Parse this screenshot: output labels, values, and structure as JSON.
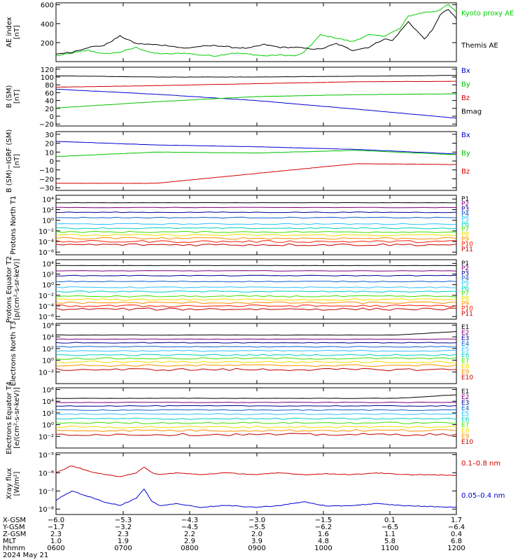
{
  "chart_data": [
    {
      "type": "line",
      "ylabel": "AE index [nT]",
      "yticks": [
        "600",
        "400",
        "200"
      ],
      "ylim": [
        0,
        620
      ],
      "series": [
        {
          "name": "Kyoto proxy AE",
          "color": "#00d000",
          "x": [
            0,
            0.04,
            0.08,
            0.12,
            0.16,
            0.2,
            0.24,
            0.28,
            0.32,
            0.36,
            0.4,
            0.44,
            0.48,
            0.52,
            0.56,
            0.6,
            0.62,
            0.66,
            0.7,
            0.74,
            0.78,
            0.82,
            0.86,
            0.88,
            0.92,
            0.95,
            0.98,
            1
          ],
          "y": [
            60,
            90,
            120,
            80,
            100,
            150,
            90,
            80,
            90,
            70,
            60,
            90,
            80,
            60,
            70,
            60,
            100,
            280,
            250,
            210,
            280,
            270,
            350,
            480,
            520,
            530,
            600,
            520
          ]
        },
        {
          "name": "Themis AE",
          "color": "#000000",
          "x": [
            0,
            0.04,
            0.08,
            0.12,
            0.16,
            0.2,
            0.24,
            0.28,
            0.32,
            0.36,
            0.4,
            0.44,
            0.48,
            0.52,
            0.56,
            0.6,
            0.62,
            0.66,
            0.7,
            0.74,
            0.78,
            0.82,
            0.84,
            0.86,
            0.88,
            0.92,
            0.94,
            0.96,
            0.98,
            1
          ],
          "y": [
            80,
            100,
            150,
            170,
            270,
            190,
            180,
            170,
            140,
            160,
            170,
            150,
            140,
            180,
            150,
            150,
            140,
            130,
            190,
            120,
            150,
            240,
            220,
            320,
            420,
            240,
            330,
            500,
            550,
            450
          ]
        }
      ]
    },
    {
      "type": "line",
      "ylabel": "B (SM) [nT]",
      "yticks": [
        "120",
        "100",
        "80",
        "60",
        "40",
        "20",
        "0",
        "−20"
      ],
      "ylim": [
        -25,
        125
      ],
      "series": [
        {
          "name": "Bx",
          "color": "#0000d0",
          "x": [
            0,
            0.25,
            0.5,
            0.75,
            1
          ],
          "y": [
            69,
            56,
            40,
            18,
            -5
          ]
        },
        {
          "name": "By",
          "color": "#00c000",
          "x": [
            0,
            0.25,
            0.5,
            0.75,
            1
          ],
          "y": [
            21,
            37,
            50,
            55,
            57
          ]
        },
        {
          "name": "Bz",
          "color": "#d00000",
          "x": [
            0,
            0.25,
            0.5,
            0.75,
            1
          ],
          "y": [
            74,
            78,
            83,
            88,
            89
          ]
        },
        {
          "name": "Bmag",
          "color": "#000000",
          "x": [
            0,
            0.25,
            0.5,
            0.75,
            1
          ],
          "y": [
            103,
            100,
            100,
            102,
            104
          ]
        }
      ]
    },
    {
      "type": "line",
      "ylabel": "B (SM)−IGRF (SM) [nT]",
      "yticks": [
        "30",
        "20",
        "10",
        "0",
        "−10",
        "−20",
        "−30"
      ],
      "ylim": [
        -33,
        33
      ],
      "series": [
        {
          "name": "Bx",
          "color": "#0000d0",
          "x": [
            0,
            0.25,
            0.5,
            0.75,
            1
          ],
          "y": [
            22,
            18,
            16,
            13,
            8
          ]
        },
        {
          "name": "By",
          "color": "#00c000",
          "x": [
            0,
            0.25,
            0.5,
            0.75,
            1
          ],
          "y": [
            5,
            10,
            9,
            12,
            7
          ]
        },
        {
          "name": "Bz",
          "color": "#d00000",
          "x": [
            0,
            0.25,
            0.5,
            0.75,
            1
          ],
          "y": [
            -25,
            -25,
            -14,
            -3,
            -4
          ]
        }
      ]
    },
    {
      "type": "line",
      "log": true,
      "ylabel": "Protons North T1",
      "yticks": [
        "10⁴",
        "10²",
        "10⁰",
        "10⁻²",
        "10⁻⁴",
        "10⁻⁶"
      ],
      "ylim": [
        -6.5,
        4.7
      ],
      "series": [
        {
          "name": "P1",
          "color": "#000000",
          "y": 3.3
        },
        {
          "name": "P2",
          "color": "#800080",
          "y": 2.4
        },
        {
          "name": "P3",
          "color": "#000090",
          "y": 1.5
        },
        {
          "name": "P4",
          "color": "#1060d0",
          "y": 0.5
        },
        {
          "name": "P5",
          "color": "#30c0ff",
          "y": -0.7
        },
        {
          "name": "P6",
          "color": "#00d0c0",
          "y": -1.5
        },
        {
          "name": "P7",
          "color": "#40e000",
          "y": -2.2
        },
        {
          "name": "P8",
          "color": "#f0e000",
          "y": -2.8
        },
        {
          "name": "P9",
          "color": "#ff9000",
          "y": -3.4
        },
        {
          "name": "P10",
          "color": "#ff2000",
          "y": -4.0
        },
        {
          "name": "P11",
          "color": "#c00000",
          "y": -4.6
        }
      ]
    },
    {
      "type": "line",
      "log": true,
      "ylabel": "Protons Equator T2 [p/(cm²-s-sr-keV)]",
      "yticks": [
        "10⁴",
        "10²",
        "10⁰",
        "10⁻²",
        "10⁻⁴",
        "10⁻⁶"
      ],
      "ylim": [
        -6.5,
        4.7
      ],
      "series": [
        {
          "name": "P1",
          "color": "#000000",
          "y": 3.6
        },
        {
          "name": "P2",
          "color": "#800080",
          "y": 2.6
        },
        {
          "name": "P3",
          "color": "#000090",
          "y": 1.7
        },
        {
          "name": "P4",
          "color": "#1060d0",
          "y": 0.6
        },
        {
          "name": "P5",
          "color": "#30c0ff",
          "y": -0.5
        },
        {
          "name": "P6",
          "color": "#00d0c0",
          "y": -1.3
        },
        {
          "name": "P7",
          "color": "#40e000",
          "y": -2.2
        },
        {
          "name": "P8",
          "color": "#f0e000",
          "y": -2.8
        },
        {
          "name": "P9",
          "color": "#ff9000",
          "y": -3.4
        },
        {
          "name": "P10",
          "color": "#ff2000",
          "y": -4.0
        },
        {
          "name": "P11",
          "color": "#c00000",
          "y": -4.6
        }
      ]
    },
    {
      "type": "line",
      "log": true,
      "ylabel": "Electrons North T3",
      "yticks": [
        "10⁶",
        "10⁴",
        "10²",
        "10⁰",
        "10⁻²"
      ],
      "ylim": [
        -4,
        6.3
      ],
      "series": [
        {
          "name": "E1",
          "color": "#000000",
          "y": 4.3
        },
        {
          "name": "E2",
          "color": "#800080",
          "y": 3.6
        },
        {
          "name": "E3",
          "color": "#000090",
          "y": 3.0
        },
        {
          "name": "E4",
          "color": "#1060d0",
          "y": 2.3
        },
        {
          "name": "E5",
          "color": "#30c0ff",
          "y": 1.6
        },
        {
          "name": "E6",
          "color": "#00d0c0",
          "y": 0.9
        },
        {
          "name": "E7",
          "color": "#40e000",
          "y": 0.3
        },
        {
          "name": "E8",
          "color": "#f0e000",
          "y": -0.3
        },
        {
          "name": "E9",
          "color": "#ff9000",
          "y": -0.9
        },
        {
          "name": "E10",
          "color": "#c00000",
          "y": -1.6
        }
      ]
    },
    {
      "type": "line",
      "log": true,
      "ylabel": "Electrons Equator T4 [e/(cm²-s-sr-keV)]",
      "yticks": [
        "10⁶",
        "10⁴",
        "10²",
        "10⁰",
        "10⁻²"
      ],
      "ylim": [
        -4,
        6.3
      ],
      "series": [
        {
          "name": "E1",
          "color": "#000000",
          "y": 4.5
        },
        {
          "name": "E2",
          "color": "#800080",
          "y": 3.8
        },
        {
          "name": "E3",
          "color": "#000090",
          "y": 3.2
        },
        {
          "name": "E4",
          "color": "#1060d0",
          "y": 2.5
        },
        {
          "name": "E5",
          "color": "#30c0ff",
          "y": 1.8
        },
        {
          "name": "E6",
          "color": "#00d0c0",
          "y": 1.0
        },
        {
          "name": "E7",
          "color": "#40e000",
          "y": 0.3
        },
        {
          "name": "E8",
          "color": "#f0e000",
          "y": -0.4
        },
        {
          "name": "E9",
          "color": "#ff9000",
          "y": -1.0
        },
        {
          "name": "E10",
          "color": "#c00000",
          "y": -1.7
        }
      ]
    },
    {
      "type": "line",
      "log": true,
      "ylabel": "Xray flux [W/m²]",
      "yticks": [
        "10⁻⁵",
        "10⁻⁶",
        "10⁻⁷",
        "10⁻⁸"
      ],
      "ylim": [
        -8.3,
        -4.9
      ],
      "series": [
        {
          "name": "0.1–0.8 nm",
          "color": "#d00000",
          "x": [
            0,
            0.04,
            0.08,
            0.12,
            0.16,
            0.2,
            0.22,
            0.24,
            0.26,
            0.3,
            0.36,
            0.42,
            0.5,
            0.56,
            0.62,
            0.68,
            0.74,
            0.8,
            0.86,
            0.92,
            1
          ],
          "y": [
            -6.0,
            -5.6,
            -5.9,
            -6.1,
            -6.2,
            -6.0,
            -5.7,
            -6.0,
            -6.1,
            -6.0,
            -6.1,
            -6.0,
            -6.1,
            -6.0,
            -6.1,
            -6.05,
            -6.1,
            -6.0,
            -6.1,
            -6.1,
            -6.15
          ]
        },
        {
          "name": "0.05–0.4 nm",
          "color": "#0000d0",
          "x": [
            0,
            0.04,
            0.08,
            0.12,
            0.16,
            0.2,
            0.22,
            0.24,
            0.26,
            0.3,
            0.36,
            0.42,
            0.5,
            0.56,
            0.62,
            0.68,
            0.74,
            0.8,
            0.86,
            0.92,
            1
          ],
          "y": [
            -7.5,
            -7.0,
            -7.3,
            -7.6,
            -7.8,
            -7.4,
            -6.9,
            -7.6,
            -7.8,
            -7.7,
            -7.9,
            -7.8,
            -7.9,
            -7.8,
            -7.6,
            -7.85,
            -7.8,
            -7.7,
            -7.8,
            -7.85,
            -7.9
          ]
        }
      ]
    }
  ],
  "xaxis": {
    "rows": [
      {
        "name": "X-GSM",
        "values": [
          "−6.0",
          "−5.3",
          "−4.3",
          "−3.0",
          "−1.5",
          "0.1",
          "1.7"
        ]
      },
      {
        "name": "Y-GSM",
        "values": [
          "−1.7",
          "−3.2",
          "−4.5",
          "−5.5",
          "−6.2",
          "−6.5",
          "−6.4"
        ]
      },
      {
        "name": "Z-GSM",
        "values": [
          "2.3",
          "2.3",
          "2.2",
          "2.0",
          "1.6",
          "1.1",
          "0.4"
        ]
      },
      {
        "name": "MLT",
        "values": [
          "1.0",
          "1.9",
          "2.9",
          "3.9",
          "4.8",
          "5.8",
          "6.8"
        ]
      },
      {
        "name": "hhmm",
        "values": [
          "0600",
          "0700",
          "0800",
          "0900",
          "1000",
          "1100",
          "1200"
        ]
      }
    ],
    "date": "2024 May 21"
  }
}
